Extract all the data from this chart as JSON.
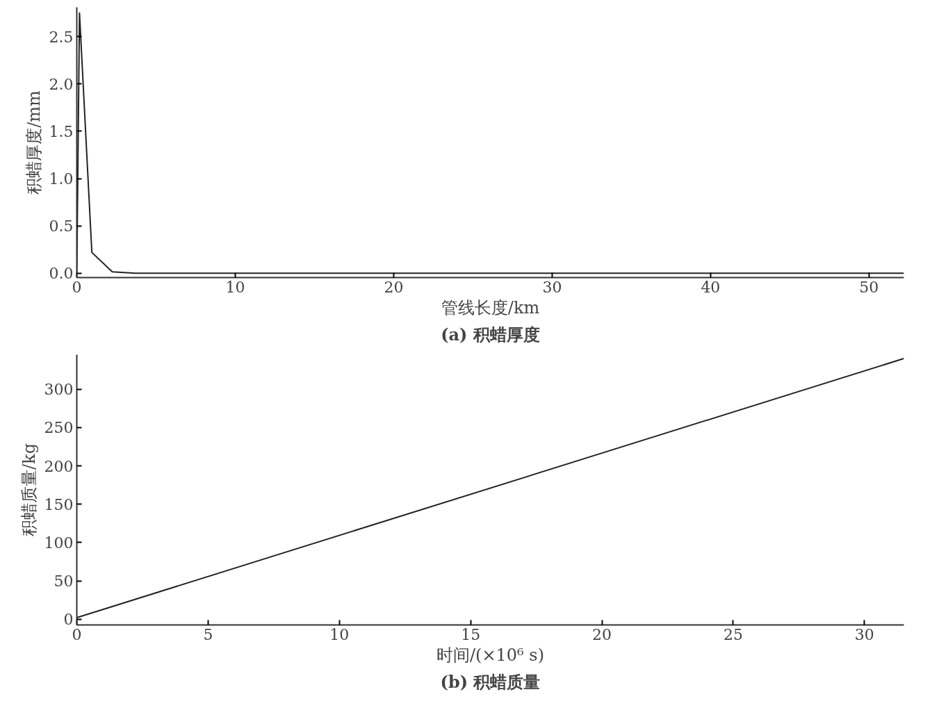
{
  "chart_data": [
    {
      "type": "line",
      "title": "(a) 积蜡厚度",
      "xlabel": "管线长度/km",
      "ylabel": "积蜡厚度/mm",
      "x": [
        0,
        0.17,
        0.95,
        2.24,
        3.7,
        52.2
      ],
      "series": [
        {
          "color": "#222222",
          "values": [
            0,
            2.75,
            0.22,
            0.015,
            0,
            0
          ]
        }
      ],
      "xlim": [
        0,
        52.2
      ],
      "ylim": [
        -0.045,
        2.81
      ],
      "xticks": [
        0,
        10,
        20,
        30,
        40,
        50
      ],
      "yticks": [
        {
          "value": 0,
          "label": "0.0"
        },
        {
          "value": 0.5,
          "label": "0.5"
        },
        {
          "value": 1,
          "label": "1.0"
        },
        {
          "value": 1.5,
          "label": "1.5"
        },
        {
          "value": 2,
          "label": "2.0"
        },
        {
          "value": 2.5,
          "label": "2.5"
        }
      ],
      "grid": false
    },
    {
      "type": "line",
      "title": "(b) 积蜡质量",
      "xlabel": "时间/(×10⁶ s)",
      "ylabel": "积蜡质量/kg",
      "x": [
        0,
        31.5
      ],
      "series": [
        {
          "color": "#222222",
          "values": [
            2,
            340
          ]
        }
      ],
      "xlim": [
        0,
        31.5
      ],
      "ylim": [
        -7.5,
        345
      ],
      "xticks": [
        0,
        5,
        10,
        15,
        20,
        25,
        30
      ],
      "yticks": [
        0,
        50,
        100,
        150,
        200,
        250,
        300
      ],
      "grid": false
    }
  ]
}
